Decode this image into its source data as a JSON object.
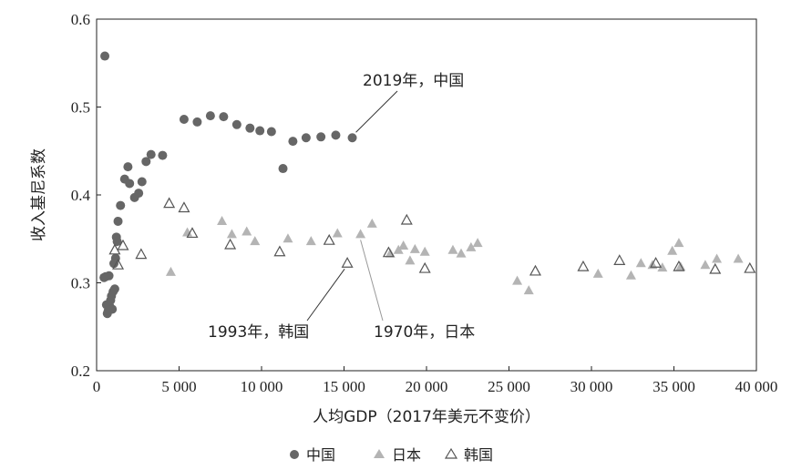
{
  "chart_data": {
    "type": "scatter",
    "xlabel": "人均GDP（2017年美元不变价）",
    "ylabel": "收入基尼系数",
    "xlim": [
      0,
      40000
    ],
    "ylim": [
      0.2,
      0.6
    ],
    "x_ticks": [
      0,
      5000,
      10000,
      15000,
      20000,
      25000,
      30000,
      35000,
      40000
    ],
    "x_tick_labels": [
      "0",
      "5 000",
      "10 000",
      "15 000",
      "20 000",
      "25 000",
      "30 000",
      "35 000",
      "40 000"
    ],
    "y_ticks": [
      0.2,
      0.3,
      0.4,
      0.5,
      0.6
    ],
    "y_tick_labels": [
      "0.2",
      "0.3",
      "0.4",
      "0.5",
      "0.6"
    ],
    "grid": false,
    "legend_position": "bottom-center",
    "series": [
      {
        "name": "中国",
        "marker": "filled-circle",
        "color": "#666666",
        "points": [
          [
            500,
            0.558
          ],
          [
            450,
            0.306
          ],
          [
            550,
            0.307
          ],
          [
            750,
            0.308
          ],
          [
            600,
            0.275
          ],
          [
            650,
            0.265
          ],
          [
            700,
            0.268
          ],
          [
            800,
            0.273
          ],
          [
            850,
            0.28
          ],
          [
            900,
            0.285
          ],
          [
            950,
            0.27
          ],
          [
            1000,
            0.29
          ],
          [
            1100,
            0.293
          ],
          [
            1050,
            0.322
          ],
          [
            1150,
            0.328
          ],
          [
            1200,
            0.352
          ],
          [
            1250,
            0.347
          ],
          [
            1300,
            0.37
          ],
          [
            1450,
            0.388
          ],
          [
            1700,
            0.418
          ],
          [
            1900,
            0.432
          ],
          [
            2000,
            0.413
          ],
          [
            2300,
            0.397
          ],
          [
            2550,
            0.402
          ],
          [
            2750,
            0.415
          ],
          [
            3000,
            0.438
          ],
          [
            3300,
            0.446
          ],
          [
            4000,
            0.445
          ],
          [
            5300,
            0.486
          ],
          [
            6100,
            0.483
          ],
          [
            6900,
            0.49
          ],
          [
            7700,
            0.489
          ],
          [
            8500,
            0.48
          ],
          [
            9300,
            0.476
          ],
          [
            9900,
            0.473
          ],
          [
            10600,
            0.472
          ],
          [
            11300,
            0.43
          ],
          [
            11900,
            0.461
          ],
          [
            12700,
            0.465
          ],
          [
            13600,
            0.466
          ],
          [
            14500,
            0.468
          ],
          [
            15500,
            0.465
          ]
        ]
      },
      {
        "name": "日本",
        "marker": "filled-triangle",
        "color": "#b4b4b4",
        "points": [
          [
            4500,
            0.312
          ],
          [
            5500,
            0.357
          ],
          [
            7600,
            0.37
          ],
          [
            8200,
            0.355
          ],
          [
            9100,
            0.358
          ],
          [
            9600,
            0.347
          ],
          [
            11600,
            0.35
          ],
          [
            13000,
            0.347
          ],
          [
            14600,
            0.356
          ],
          [
            16000,
            0.355
          ],
          [
            16700,
            0.367
          ],
          [
            17800,
            0.333
          ],
          [
            18300,
            0.337
          ],
          [
            18600,
            0.342
          ],
          [
            19000,
            0.325
          ],
          [
            19300,
            0.338
          ],
          [
            19900,
            0.335
          ],
          [
            21600,
            0.337
          ],
          [
            22100,
            0.333
          ],
          [
            22700,
            0.34
          ],
          [
            23100,
            0.345
          ],
          [
            25500,
            0.302
          ],
          [
            26200,
            0.291
          ],
          [
            30400,
            0.31
          ],
          [
            32400,
            0.308
          ],
          [
            33000,
            0.322
          ],
          [
            33700,
            0.32
          ],
          [
            34300,
            0.317
          ],
          [
            34900,
            0.336
          ],
          [
            35300,
            0.345
          ],
          [
            35400,
            0.318
          ],
          [
            36900,
            0.32
          ],
          [
            37600,
            0.327
          ],
          [
            38900,
            0.327
          ]
        ]
      },
      {
        "name": "韩国",
        "marker": "hollow-triangle",
        "color": "#555555",
        "points": [
          [
            1100,
            0.337
          ],
          [
            1300,
            0.32
          ],
          [
            1600,
            0.342
          ],
          [
            2700,
            0.332
          ],
          [
            4400,
            0.39
          ],
          [
            5300,
            0.385
          ],
          [
            5800,
            0.356
          ],
          [
            8100,
            0.343
          ],
          [
            11100,
            0.335
          ],
          [
            14100,
            0.348
          ],
          [
            15200,
            0.322
          ],
          [
            17700,
            0.334
          ],
          [
            18800,
            0.371
          ],
          [
            19900,
            0.316
          ],
          [
            26600,
            0.313
          ],
          [
            29500,
            0.318
          ],
          [
            31700,
            0.325
          ],
          [
            33900,
            0.322
          ],
          [
            35300,
            0.318
          ],
          [
            37500,
            0.315
          ],
          [
            39600,
            0.316
          ]
        ]
      }
    ],
    "annotations": [
      {
        "text": "2019年，中国",
        "x": 15500,
        "y": 0.465
      },
      {
        "text": "1993年，韩国",
        "x": 15200,
        "y": 0.322
      },
      {
        "text": "1970年，日本",
        "x": 16000,
        "y": 0.355
      }
    ]
  }
}
